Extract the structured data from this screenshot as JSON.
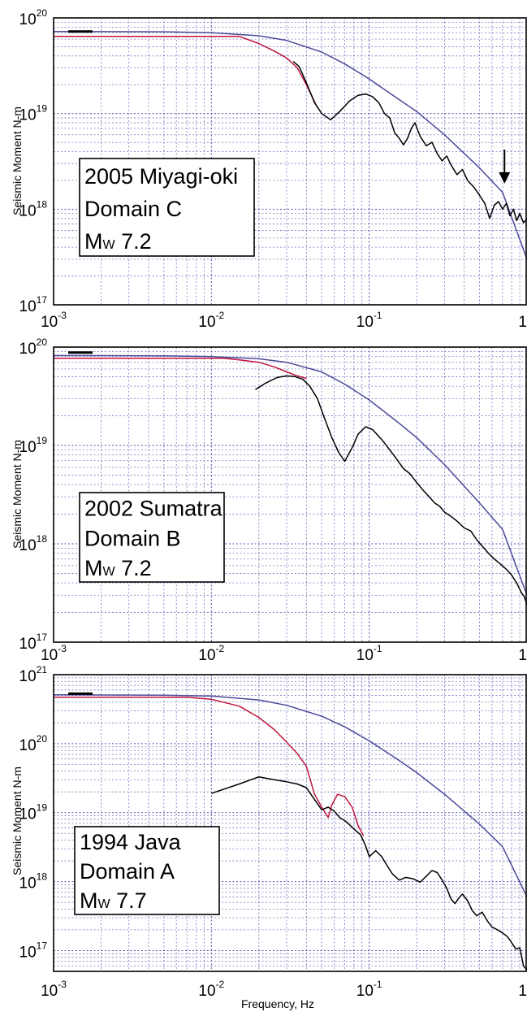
{
  "chart_data": [
    {
      "type": "line",
      "ylabel": "Seismic Moment N-m",
      "xlabel": "",
      "x_scale": "log",
      "y_scale": "log",
      "xlim": [
        0.001,
        1
      ],
      "ylim": [
        1e+17,
        1e+20
      ],
      "grid": true,
      "x_ticks": [
        {
          "base": "10",
          "exp": "-3"
        },
        {
          "base": "10",
          "exp": "-2"
        },
        {
          "base": "10",
          "exp": "-1"
        },
        {
          "base": "1",
          "exp": ""
        }
      ],
      "y_ticks": [
        {
          "base": "10",
          "exp": "17"
        },
        {
          "base": "10",
          "exp": "18"
        },
        {
          "base": "10",
          "exp": "19"
        },
        {
          "base": "10",
          "exp": "20"
        }
      ],
      "annotation": {
        "line1": "2005 Miyagi-oki",
        "line2": "Domain C",
        "mw_main": "M",
        "mw_sub": "W",
        "mw_value": "7.2"
      },
      "arrow": {
        "x": 0.72,
        "y_from": 4.2e+18,
        "y_to": 2e+18
      },
      "reference_moment": 7.2e+19,
      "series": [
        {
          "color": "#4b4a9a",
          "width": 1.5,
          "points": [
            [
              0.001,
              7.2e+19
            ],
            [
              0.005,
              7.15e+19
            ],
            [
              0.01,
              7e+19
            ],
            [
              0.02,
              6.5e+19
            ],
            [
              0.03,
              5.8e+19
            ],
            [
              0.05,
              4.4e+19
            ],
            [
              0.07,
              3.3e+19
            ],
            [
              0.1,
              2.3e+19
            ],
            [
              0.15,
              1.45e+19
            ],
            [
              0.2,
              1.05e+19
            ],
            [
              0.3,
              6e+18
            ],
            [
              0.5,
              2.7e+18
            ],
            [
              0.7,
              1.5e+18
            ],
            [
              1.0,
              3e+17
            ]
          ]
        },
        {
          "color": "#c0143c",
          "width": 1.5,
          "points": [
            [
              0.001,
              6.4e+19
            ],
            [
              0.015,
              6.4e+19
            ],
            [
              0.02,
              5.4e+19
            ],
            [
              0.025,
              4.5e+19
            ],
            [
              0.03,
              3.8e+19
            ],
            [
              0.035,
              3e+19
            ],
            [
              0.04,
              2e+19
            ],
            [
              0.047,
              1.15e+19
            ]
          ]
        },
        {
          "color": "#000000",
          "width": 1.5,
          "points": [
            [
              0.033,
              3.5e+19
            ],
            [
              0.036,
              3.1e+19
            ],
            [
              0.04,
              2.1e+19
            ],
            [
              0.045,
              1.3e+19
            ],
            [
              0.05,
              1e+19
            ],
            [
              0.057,
              8.6e+18
            ],
            [
              0.065,
              1.05e+19
            ],
            [
              0.075,
              1.35e+19
            ],
            [
              0.085,
              1.55e+19
            ],
            [
              0.095,
              1.6e+19
            ],
            [
              0.105,
              1.5e+19
            ],
            [
              0.115,
              1.3e+19
            ],
            [
              0.125,
              1e+19
            ],
            [
              0.135,
              9e+18
            ],
            [
              0.145,
              6.3e+18
            ],
            [
              0.155,
              5.5e+18
            ],
            [
              0.165,
              4.7e+18
            ],
            [
              0.175,
              5.5e+18
            ],
            [
              0.185,
              7e+18
            ],
            [
              0.195,
              8e+18
            ],
            [
              0.21,
              5.8e+18
            ],
            [
              0.23,
              4.6e+18
            ],
            [
              0.25,
              5e+18
            ],
            [
              0.27,
              3.8e+18
            ],
            [
              0.29,
              3.2e+18
            ],
            [
              0.31,
              3.6e+18
            ],
            [
              0.33,
              2.9e+18
            ],
            [
              0.36,
              2.3e+18
            ],
            [
              0.39,
              2.6e+18
            ],
            [
              0.42,
              2e+18
            ],
            [
              0.46,
              1.7e+18
            ],
            [
              0.5,
              1.4e+18
            ],
            [
              0.54,
              1.15e+18
            ],
            [
              0.58,
              8e+17
            ],
            [
              0.62,
              1.1e+18
            ],
            [
              0.66,
              1.2e+18
            ],
            [
              0.7,
              1e+18
            ],
            [
              0.74,
              1.15e+18
            ],
            [
              0.78,
              8.5e+17
            ],
            [
              0.82,
              1e+18
            ],
            [
              0.86,
              7.6e+17
            ],
            [
              0.9,
              9e+17
            ],
            [
              0.95,
              7.2e+17
            ],
            [
              1.0,
              8e+17
            ]
          ]
        }
      ]
    },
    {
      "type": "line",
      "ylabel": "Seismic Moment N-m",
      "xlabel": "",
      "x_scale": "log",
      "y_scale": "log",
      "xlim": [
        0.001,
        1
      ],
      "ylim": [
        1e+17,
        1e+20
      ],
      "grid": true,
      "x_ticks": [
        {
          "base": "10",
          "exp": "-3"
        },
        {
          "base": "10",
          "exp": "-2"
        },
        {
          "base": "10",
          "exp": "-1"
        },
        {
          "base": "1",
          "exp": ""
        }
      ],
      "y_ticks": [
        {
          "base": "10",
          "exp": "17"
        },
        {
          "base": "10",
          "exp": "18"
        },
        {
          "base": "10",
          "exp": "19"
        },
        {
          "base": "10",
          "exp": "20"
        }
      ],
      "annotation": {
        "line1": "2002 Sumatra",
        "line2": "Domain B",
        "mw_main": "M",
        "mw_sub": "W",
        "mw_value": "7.2"
      },
      "reference_moment": 8.8e+19,
      "series": [
        {
          "color": "#4b4a9a",
          "width": 1.5,
          "points": [
            [
              0.001,
              8.2e+19
            ],
            [
              0.005,
              8.15e+19
            ],
            [
              0.01,
              8e+19
            ],
            [
              0.02,
              7.6e+19
            ],
            [
              0.03,
              7e+19
            ],
            [
              0.05,
              5.6e+19
            ],
            [
              0.07,
              4.2e+19
            ],
            [
              0.1,
              2.9e+19
            ],
            [
              0.15,
              1.75e+19
            ],
            [
              0.2,
              1.2e+19
            ],
            [
              0.3,
              6.4e+18
            ],
            [
              0.5,
              2.6e+18
            ],
            [
              0.7,
              1.4e+18
            ],
            [
              1.0,
              3e+17
            ]
          ]
        },
        {
          "color": "#c0143c",
          "width": 1.5,
          "points": [
            [
              0.001,
              7.7e+19
            ],
            [
              0.012,
              7.7e+19
            ],
            [
              0.015,
              7.4e+19
            ],
            [
              0.02,
              7e+19
            ],
            [
              0.025,
              6.3e+19
            ],
            [
              0.03,
              5.6e+19
            ],
            [
              0.035,
              5.1e+19
            ],
            [
              0.04,
              4.8e+19
            ]
          ]
        },
        {
          "color": "#000000",
          "width": 1.5,
          "points": [
            [
              0.019,
              3.7e+19
            ],
            [
              0.022,
              4.3e+19
            ],
            [
              0.026,
              4.9e+19
            ],
            [
              0.03,
              5.1e+19
            ],
            [
              0.034,
              5e+19
            ],
            [
              0.038,
              4.7e+19
            ],
            [
              0.042,
              4e+19
            ],
            [
              0.047,
              3e+19
            ],
            [
              0.052,
              1.9e+19
            ],
            [
              0.058,
              1.2e+19
            ],
            [
              0.064,
              8.5e+18
            ],
            [
              0.07,
              6.9e+18
            ],
            [
              0.078,
              9.5e+18
            ],
            [
              0.085,
              1.3e+19
            ],
            [
              0.095,
              1.55e+19
            ],
            [
              0.105,
              1.45e+19
            ],
            [
              0.12,
              1.15e+19
            ],
            [
              0.135,
              9e+18
            ],
            [
              0.15,
              7.2e+18
            ],
            [
              0.165,
              5.8e+18
            ],
            [
              0.18,
              5.2e+18
            ],
            [
              0.2,
              4.2e+18
            ],
            [
              0.22,
              3.5e+18
            ],
            [
              0.24,
              3e+18
            ],
            [
              0.26,
              2.6e+18
            ],
            [
              0.28,
              2.4e+18
            ],
            [
              0.3,
              2.1e+18
            ],
            [
              0.33,
              1.9e+18
            ],
            [
              0.36,
              1.7e+18
            ],
            [
              0.4,
              1.45e+18
            ],
            [
              0.44,
              1.35e+18
            ],
            [
              0.48,
              1.1e+18
            ],
            [
              0.52,
              9.5e+17
            ],
            [
              0.57,
              8e+17
            ],
            [
              0.62,
              7e+17
            ],
            [
              0.68,
              6.2e+17
            ],
            [
              0.74,
              5.5e+17
            ],
            [
              0.8,
              4.8e+17
            ],
            [
              0.86,
              4e+17
            ],
            [
              0.92,
              3.2e+17
            ],
            [
              0.96,
              2.9e+17
            ],
            [
              1.0,
              2.4e+17
            ]
          ]
        }
      ]
    },
    {
      "type": "line",
      "ylabel": "Seismic Moment N-m",
      "xlabel": "Frequency, Hz",
      "x_scale": "log",
      "y_scale": "log",
      "xlim": [
        0.001,
        1
      ],
      "ylim": [
        5e+16,
        1e+21
      ],
      "grid": true,
      "x_ticks": [
        {
          "base": "10",
          "exp": "-3"
        },
        {
          "base": "10",
          "exp": "-2"
        },
        {
          "base": "10",
          "exp": "-1"
        },
        {
          "base": "1",
          "exp": ""
        }
      ],
      "y_ticks": [
        {
          "base": "10",
          "exp": "17"
        },
        {
          "base": "10",
          "exp": "18"
        },
        {
          "base": "10",
          "exp": "19"
        },
        {
          "base": "10",
          "exp": "20"
        },
        {
          "base": "10",
          "exp": "21"
        }
      ],
      "annotation": {
        "line1": "1994 Java",
        "line2": "Domain A",
        "mw_main": "M",
        "mw_sub": "W",
        "mw_value": "7.7"
      },
      "reference_moment": 5.3e+20,
      "series": [
        {
          "color": "#4b4a9a",
          "width": 1.5,
          "points": [
            [
              0.001,
              5.1e+20
            ],
            [
              0.005,
              5.05e+20
            ],
            [
              0.01,
              4.9e+20
            ],
            [
              0.02,
              4.3e+20
            ],
            [
              0.03,
              3.6e+20
            ],
            [
              0.05,
              2.5e+20
            ],
            [
              0.07,
              1.75e+20
            ],
            [
              0.1,
              1.1e+20
            ],
            [
              0.15,
              6e+19
            ],
            [
              0.2,
              3.8e+19
            ],
            [
              0.3,
              1.85e+19
            ],
            [
              0.5,
              6.8e+18
            ],
            [
              0.7,
              3.2e+18
            ],
            [
              1.0,
              6e+17
            ]
          ]
        },
        {
          "color": "#c0143c",
          "width": 1.5,
          "points": [
            [
              0.001,
              4.7e+20
            ],
            [
              0.007,
              4.7e+20
            ],
            [
              0.01,
              4.4e+20
            ],
            [
              0.015,
              3.5e+20
            ],
            [
              0.02,
              2.4e+20
            ],
            [
              0.025,
              1.6e+20
            ],
            [
              0.03,
              1.05e+20
            ],
            [
              0.035,
              7.2e+19
            ],
            [
              0.04,
              4.7e+19
            ],
            [
              0.045,
              1.85e+19
            ],
            [
              0.05,
              1.2e+19
            ],
            [
              0.055,
              8.5e+18
            ],
            [
              0.058,
              1.3e+19
            ],
            [
              0.063,
              1.85e+19
            ],
            [
              0.07,
              1.7e+19
            ],
            [
              0.078,
              1.2e+19
            ],
            [
              0.085,
              6.5e+18
            ],
            [
              0.092,
              4.6e+18
            ]
          ]
        },
        {
          "color": "#000000",
          "width": 1.5,
          "points": [
            [
              0.01,
              1.9e+19
            ],
            [
              0.015,
              2.6e+19
            ],
            [
              0.02,
              3.3e+19
            ],
            [
              0.025,
              3e+19
            ],
            [
              0.03,
              2.8e+19
            ],
            [
              0.035,
              2.6e+19
            ],
            [
              0.04,
              2.3e+19
            ],
            [
              0.045,
              1.55e+19
            ],
            [
              0.05,
              1.1e+19
            ],
            [
              0.055,
              1.2e+19
            ],
            [
              0.06,
              1.05e+19
            ],
            [
              0.065,
              8.5e+18
            ],
            [
              0.072,
              7.3e+18
            ],
            [
              0.08,
              5.8e+18
            ],
            [
              0.088,
              4.8e+18
            ],
            [
              0.095,
              3.3e+18
            ],
            [
              0.1,
              2.3e+18
            ],
            [
              0.11,
              2.8e+18
            ],
            [
              0.12,
              2.3e+18
            ],
            [
              0.13,
              1.7e+18
            ],
            [
              0.14,
              1.3e+18
            ],
            [
              0.155,
              1.05e+18
            ],
            [
              0.17,
              1.15e+18
            ],
            [
              0.19,
              1.1e+18
            ],
            [
              0.21,
              9.8e+17
            ],
            [
              0.23,
              1.2e+18
            ],
            [
              0.25,
              1.45e+18
            ],
            [
              0.27,
              1.35e+18
            ],
            [
              0.29,
              1.05e+18
            ],
            [
              0.31,
              8e+17
            ],
            [
              0.33,
              5.6e+17
            ],
            [
              0.35,
              4.8e+17
            ],
            [
              0.37,
              5.8e+17
            ],
            [
              0.39,
              6.6e+17
            ],
            [
              0.42,
              5.3e+17
            ],
            [
              0.45,
              3.8e+17
            ],
            [
              0.48,
              3.2e+17
            ],
            [
              0.52,
              3.6e+17
            ],
            [
              0.56,
              2.7e+17
            ],
            [
              0.6,
              2.2e+17
            ],
            [
              0.65,
              2e+17
            ],
            [
              0.7,
              1.8e+17
            ],
            [
              0.75,
              1.6e+17
            ],
            [
              0.8,
              1.3e+17
            ],
            [
              0.85,
              1.05e+17
            ],
            [
              0.9,
              1.1e+17
            ],
            [
              0.95,
              6e+16
            ],
            [
              1.0,
              5.2e+16
            ]
          ]
        }
      ]
    }
  ]
}
